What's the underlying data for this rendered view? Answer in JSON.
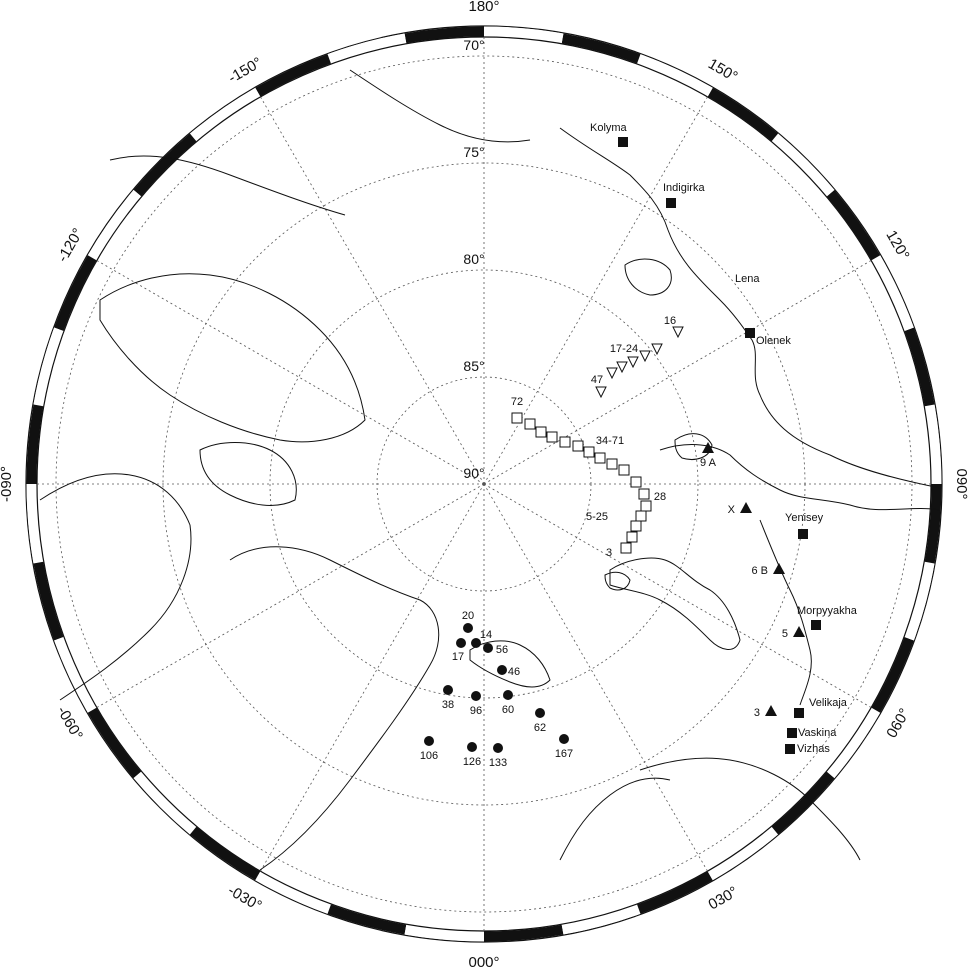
{
  "longitude_labels": [
    {
      "text": "180°",
      "lon": 180
    },
    {
      "text": "150°",
      "lon": 150
    },
    {
      "text": "120°",
      "lon": 120
    },
    {
      "text": "090°",
      "lon": 90
    },
    {
      "text": "060°",
      "lon": 60
    },
    {
      "text": "030°",
      "lon": 30
    },
    {
      "text": "000°",
      "lon": 0
    },
    {
      "text": "-030°",
      "lon": -30
    },
    {
      "text": "-060°",
      "lon": -60
    },
    {
      "text": "-090°",
      "lon": -90
    },
    {
      "text": "-120°",
      "lon": -120
    },
    {
      "text": "-150°",
      "lon": -150
    }
  ],
  "latitude_labels": [
    {
      "text": "70°",
      "lat": 70
    },
    {
      "text": "75°",
      "lat": 75
    },
    {
      "text": "80°",
      "lat": 80
    },
    {
      "text": "85°",
      "lat": 85
    },
    {
      "text": "90°",
      "lat": 90
    }
  ],
  "rivers": [
    {
      "name": "Kolyma",
      "lat": 69.6,
      "lon": 160.6
    },
    {
      "name": "Indigirka",
      "lat": 71.0,
      "lon": 150.0
    },
    {
      "name": "Lena",
      "lat": 73.0,
      "lon": 126.8,
      "label_only": true
    },
    {
      "name": "Olenek",
      "lat": 72.9,
      "lon": 120.0
    },
    {
      "name": "Yenisey",
      "lat": 69.6,
      "lon": 86.0
    },
    {
      "name": "Morpyyakha",
      "lat": 68.4,
      "lon": 66.8
    },
    {
      "name": "Velikaja",
      "lat": 66.3,
      "lon": 56.6
    },
    {
      "name": "Vaskina",
      "lat": 66.6,
      "lon": 55.2
    },
    {
      "name": "Vizhas",
      "lat": 66.4,
      "lon": 53.8
    }
  ],
  "triangle_sites": [
    {
      "label": "9 A",
      "lat": 76.3,
      "lon": 99.0
    },
    {
      "label": "X",
      "lat": 72.7,
      "lon": 88.8
    },
    {
      "label": "6 B",
      "lat": 70.2,
      "lon": 77.5
    },
    {
      "label": "5",
      "lat": 68.6,
      "lon": 67.2
    },
    {
      "label": "3",
      "lat": 68.3,
      "lon": 53.8
    }
  ],
  "open_triangle_labels": [
    "16",
    "17-24",
    "47"
  ],
  "open_square_labels": [
    "72",
    "34-71",
    "28",
    "5-25",
    "3"
  ],
  "circle_labels": [
    "20",
    "14",
    "17",
    "56",
    "46",
    "38",
    "96",
    "60",
    "62",
    "106",
    "126",
    "133",
    "167"
  ],
  "map_style": {
    "ink": "#111111",
    "grid": "#555555",
    "frame_black": "#111111",
    "frame_white": "#ffffff"
  }
}
